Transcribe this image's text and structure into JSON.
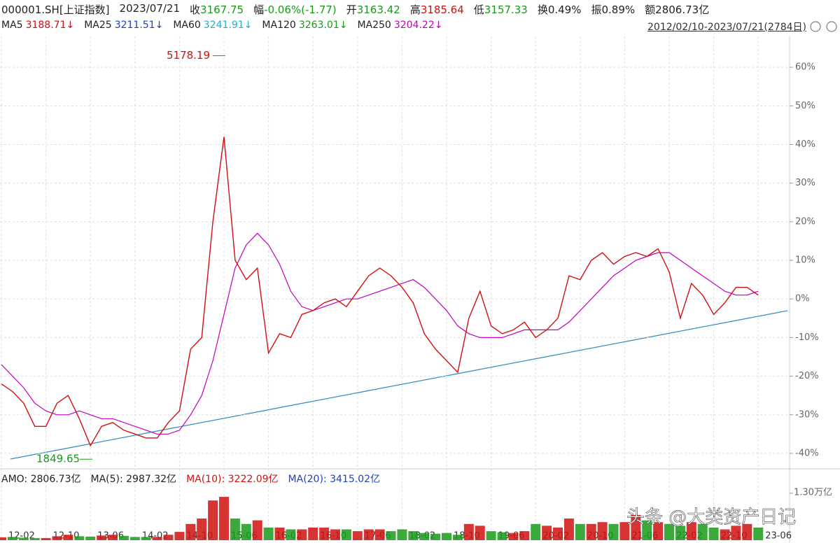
{
  "quote": {
    "symbol": "000001.SH[上证指数]",
    "date": "2023/07/21",
    "fields": [
      {
        "label": "收",
        "value": "3167.75",
        "color": "#1a9a1a"
      },
      {
        "label": "幅",
        "value": "-0.06%(-1.77)",
        "color": "#1a9a1a"
      },
      {
        "label": "开",
        "value": "3163.42",
        "color": "#1a9a1a"
      },
      {
        "label": "高",
        "value": "3185.64",
        "color": "#d01010"
      },
      {
        "label": "低",
        "value": "3157.33",
        "color": "#1a9a1a"
      },
      {
        "label": "换",
        "value": "0.49%",
        "color": "#222222"
      },
      {
        "label": "振",
        "value": "0.89%",
        "color": "#222222"
      },
      {
        "label": "额",
        "value": "2806.73亿",
        "color": "#222222"
      }
    ]
  },
  "ma_legend": [
    {
      "label": "MA5",
      "value": "3188.71↓",
      "color": "#d01010"
    },
    {
      "label": "MA25",
      "value": "3211.51↓",
      "color": "#2040c0"
    },
    {
      "label": "MA60",
      "value": "3241.91↓",
      "color": "#20b0c8"
    },
    {
      "label": "MA120",
      "value": "3263.01↓",
      "color": "#1a9a1a"
    },
    {
      "label": "MA250",
      "value": "3204.22↓",
      "color": "#c000c0"
    }
  ],
  "range": "2012/02/10-2023/07/21(2784日)",
  "watermark": "头条 @大类资产日记",
  "chart_data": {
    "type": "line",
    "categories": [
      "12-02",
      null,
      null,
      null,
      "12-10",
      null,
      null,
      null,
      "13-06",
      null,
      null,
      null,
      "14-02",
      null,
      null,
      null,
      "14-10",
      null,
      null,
      null,
      "15-06",
      null,
      null,
      null,
      "16-02",
      null,
      null,
      null,
      "16-10",
      null,
      null,
      null,
      "17-06",
      null,
      null,
      null,
      "18-02",
      null,
      null,
      null,
      "18-10",
      null,
      null,
      null,
      "19-06",
      null,
      null,
      null,
      "20-02",
      null,
      null,
      null,
      "20-10",
      null,
      null,
      null,
      "21-06",
      null,
      null,
      null,
      "22-02",
      null,
      null,
      null,
      "22-10",
      null,
      null,
      null,
      "23-06"
    ],
    "values": [
      -22,
      -24,
      -27,
      -33,
      -33,
      -27,
      -25,
      -31,
      -38,
      -33,
      -32,
      -34,
      -35,
      -36,
      -36,
      -32,
      -29,
      -13,
      -10,
      20,
      42,
      10,
      5,
      8,
      -14,
      -9,
      -10,
      -4,
      -3,
      -1,
      0,
      -2,
      2,
      6,
      8,
      6,
      3,
      -1,
      -9,
      -13,
      -16,
      -19,
      -5,
      2,
      -7,
      -9,
      -8,
      -6,
      -10,
      -8,
      -5,
      6,
      5,
      10,
      12,
      9,
      11,
      12,
      11,
      13,
      7,
      -5,
      4,
      1,
      -4,
      -1,
      3,
      3,
      1
    ],
    "color": "#d01010",
    "series": [
      {
        "name": "MA250",
        "color": "#c000c0",
        "values": [
          -17,
          -20,
          -23,
          -27,
          -29,
          -30,
          -30,
          -29,
          -30,
          -31,
          -31,
          -32,
          -33,
          -34,
          -35,
          -35,
          -34,
          -30,
          -25,
          -16,
          -4,
          8,
          14,
          17,
          14,
          9,
          2,
          -2,
          -3,
          -2,
          -1,
          0,
          0,
          1,
          2,
          3,
          4,
          5,
          3,
          0,
          -3,
          -7,
          -9,
          -10,
          -10,
          -10,
          -9,
          -8,
          -8,
          -8,
          -8,
          -6,
          -3,
          0,
          3,
          6,
          8,
          10,
          11,
          12,
          12,
          10,
          8,
          6,
          4,
          2,
          1,
          1,
          2
        ]
      }
    ],
    "ylim": [
      -44,
      68
    ],
    "yticks": [
      {
        "value": -40,
        "label": "-40%"
      },
      {
        "value": -30,
        "label": "-30%"
      },
      {
        "value": -20,
        "label": "-20%"
      },
      {
        "value": -10,
        "label": "-10%"
      },
      {
        "value": 0,
        "label": "0%"
      },
      {
        "value": 10,
        "label": "10%"
      },
      {
        "value": 20,
        "label": "20%"
      },
      {
        "value": 30,
        "label": "30%"
      },
      {
        "value": 40,
        "label": "40%"
      },
      {
        "value": 50,
        "label": "50%"
      },
      {
        "value": 60,
        "label": "60%"
      }
    ],
    "grid": true,
    "high": {
      "label": "5178.19",
      "value": 63
    },
    "low": {
      "label": "1849.65",
      "value": -41.5
    },
    "volume": {
      "header": [
        {
          "text": "AMO: 2806.73亿",
          "color": "#222222"
        },
        {
          "text": "MA(5): 2987.32亿",
          "color": "#222222"
        },
        {
          "text": "MA(10): 3222.09亿",
          "color": "#d01010"
        },
        {
          "text": "MA(20): 3415.02亿",
          "color": "#2040c0"
        }
      ],
      "values": [
        800,
        900,
        700,
        600,
        600,
        1100,
        1500,
        1100,
        1000,
        1300,
        1500,
        1200,
        900,
        900,
        900,
        1500,
        2300,
        4500,
        6000,
        11000,
        12000,
        6000,
        4500,
        5500,
        3500,
        3500,
        3000,
        3000,
        3500,
        3500,
        3000,
        3000,
        2500,
        3000,
        3000,
        2500,
        3000,
        2500,
        2000,
        1800,
        2000,
        1500,
        4500,
        4000,
        2500,
        2200,
        2000,
        2500,
        4500,
        4000,
        3500,
        6000,
        4500,
        4500,
        5000,
        4500,
        5000,
        7000,
        5500,
        5000,
        4500,
        4000,
        5000,
        4500,
        3500,
        3000,
        4000,
        4500,
        3500
      ],
      "ylim": [
        0,
        15500
      ],
      "yticks": [
        {
          "value": 13000,
          "label": "1.30万亿"
        }
      ]
    }
  }
}
